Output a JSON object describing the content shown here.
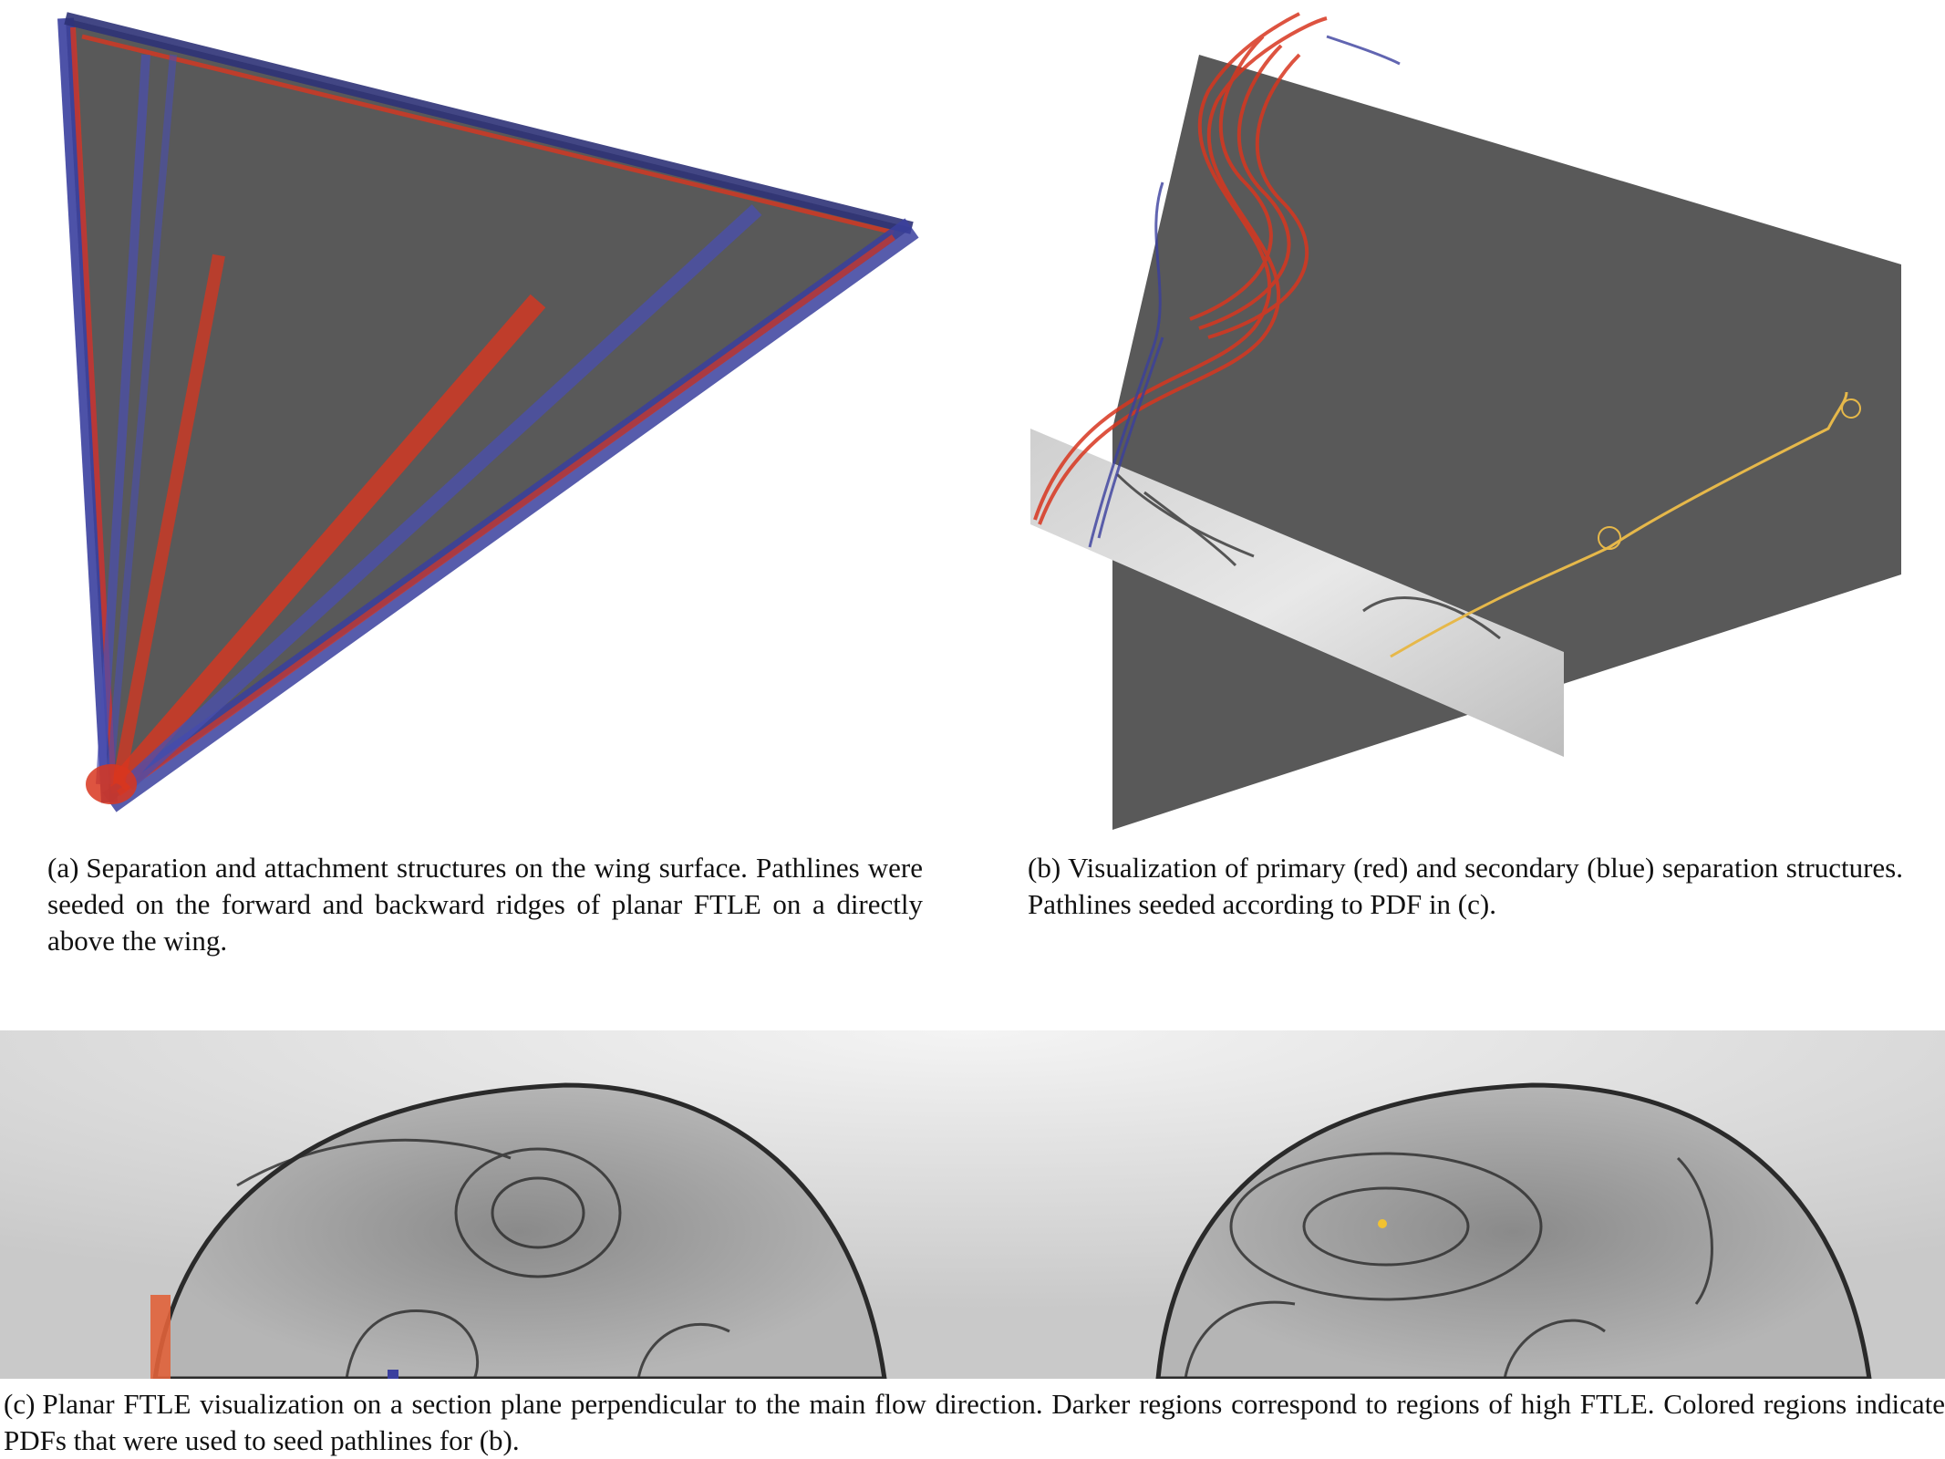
{
  "figure": {
    "panels": [
      {
        "tag": "(a)",
        "caption": "Separation and attachment structures on the wing surface. Pathlines were seeded on the forward and backward ridges of planar FTLE on a directly above the wing."
      },
      {
        "tag": "(b)",
        "caption": "Visualization of primary (red) and secondary (blue) separation structures. Pathlines seeded according to PDF in (c)."
      },
      {
        "tag": "(c)",
        "caption": "Planar FTLE visualization on a section plane perpendicular to the main flow direction. Darker regions correspond to regions of high FTLE. Colored regions indicate PDFs that were used to seed pathlines for (b)."
      }
    ]
  },
  "colors": {
    "wing_surface": "#595959",
    "primary_separation": "#d8361f",
    "secondary_separation": "#3a3f9e",
    "seed_pathline": "#e6b84a",
    "ftle_background": "#d2d2d2",
    "ftle_ridge": "#2a2a2a",
    "pdf_red": "#e0623a",
    "pdf_yellow": "#f2c230"
  }
}
